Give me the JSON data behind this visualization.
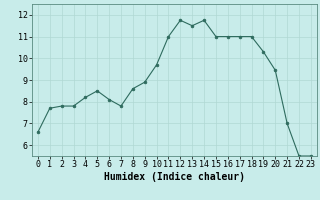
{
  "x": [
    0,
    1,
    2,
    3,
    4,
    5,
    6,
    7,
    8,
    9,
    10,
    11,
    12,
    13,
    14,
    15,
    16,
    17,
    18,
    19,
    20,
    21,
    22,
    23
  ],
  "y": [
    6.6,
    7.7,
    7.8,
    7.8,
    8.2,
    8.5,
    8.1,
    7.8,
    8.6,
    8.9,
    9.7,
    11.0,
    11.75,
    11.5,
    11.75,
    11.0,
    11.0,
    11.0,
    11.0,
    10.3,
    9.45,
    7.0,
    5.5,
    5.5
  ],
  "line_color": "#2e6b5e",
  "marker_color": "#2e6b5e",
  "bg_color": "#c8ecea",
  "grid_color": "#b0d8d4",
  "xlabel": "Humidex (Indice chaleur)",
  "xlabel_fontsize": 7,
  "tick_fontsize": 6,
  "ylim": [
    5.5,
    12.5
  ],
  "xlim": [
    -0.5,
    23.5
  ],
  "yticks": [
    6,
    7,
    8,
    9,
    10,
    11,
    12
  ],
  "xticks": [
    0,
    1,
    2,
    3,
    4,
    5,
    6,
    7,
    8,
    9,
    10,
    11,
    12,
    13,
    14,
    15,
    16,
    17,
    18,
    19,
    20,
    21,
    22,
    23
  ]
}
